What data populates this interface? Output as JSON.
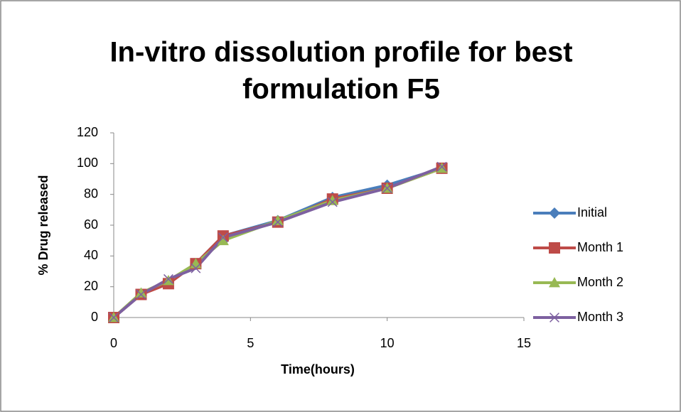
{
  "chart_data": {
    "type": "line",
    "title": [
      "In-vitro dissolution profile for best",
      "formulation F5"
    ],
    "xlabel": "Time(hours)",
    "ylabel": "% Drug released",
    "x": [
      0,
      1,
      2,
      3,
      4,
      6,
      8,
      10,
      12
    ],
    "series": [
      {
        "name": "Initial",
        "color": "#4a7ebb",
        "marker": "diamond",
        "values": [
          0,
          15,
          23,
          35,
          53,
          63,
          78,
          86,
          97
        ]
      },
      {
        "name": "Month 1",
        "color": "#be4b48",
        "marker": "square",
        "values": [
          0,
          15,
          22,
          35,
          53,
          62,
          77,
          84,
          97
        ]
      },
      {
        "name": "Month 2",
        "color": "#98b954",
        "marker": "triangle",
        "values": [
          0,
          16,
          24,
          35,
          50,
          63,
          76,
          84,
          97
        ]
      },
      {
        "name": "Month 3",
        "color": "#7d60a0",
        "marker": "x",
        "values": [
          0,
          15,
          25,
          32,
          52,
          62,
          75,
          84,
          98
        ]
      }
    ],
    "xlim": [
      0,
      15
    ],
    "xticks": [
      0,
      5,
      10,
      15
    ],
    "ylim": [
      0,
      120
    ],
    "yticks": [
      0,
      20,
      40,
      60,
      80,
      100,
      120
    ],
    "grid": false,
    "legend": "right"
  }
}
